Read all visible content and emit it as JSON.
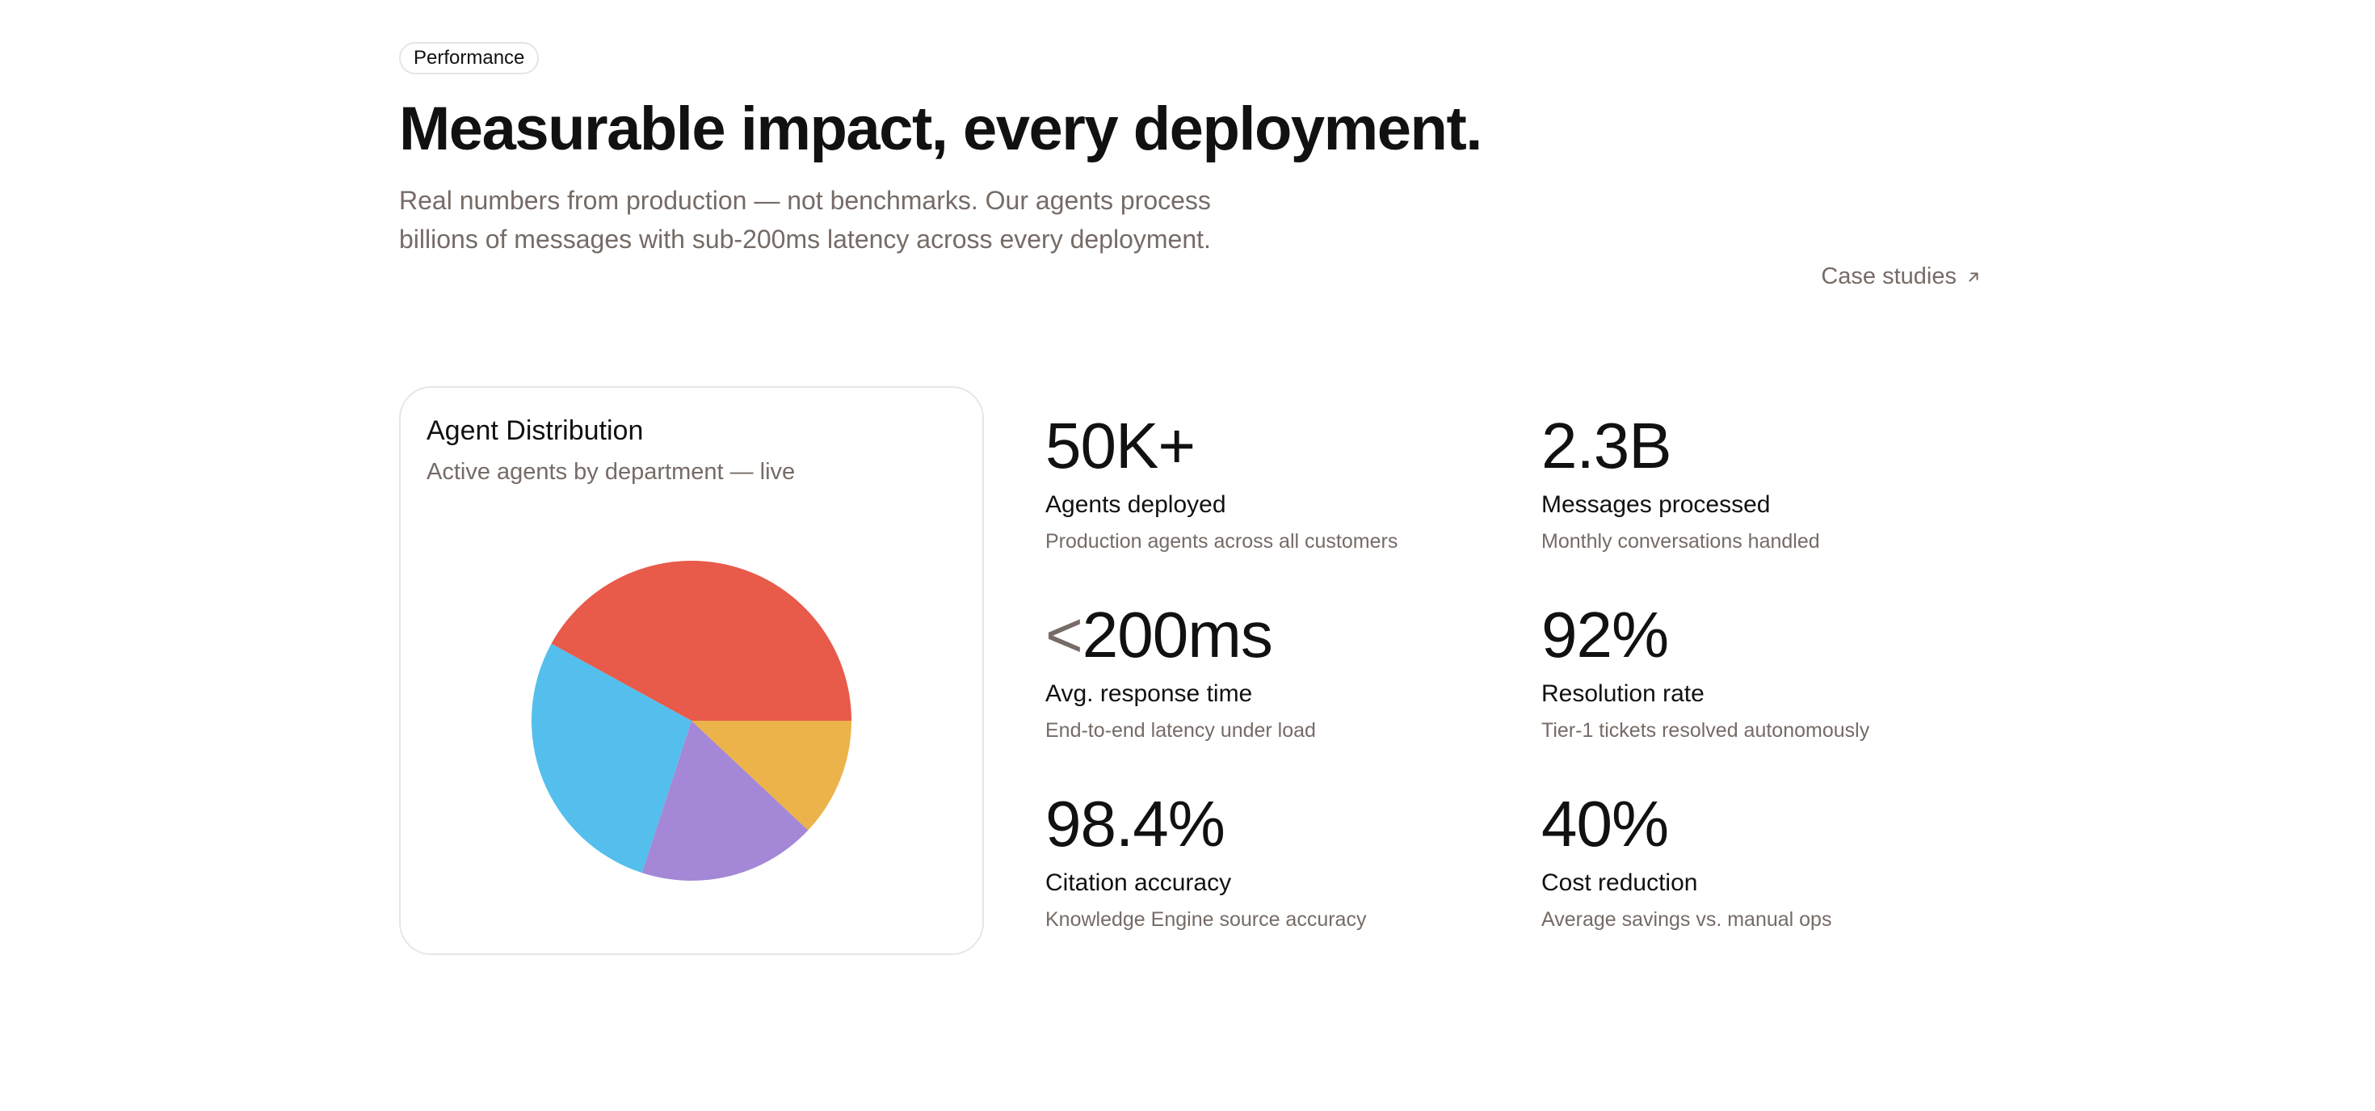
{
  "badge": "Performance",
  "headline": "Measurable impact, every deployment.",
  "subheadline": "Real numbers from production — not benchmarks. Our agents process billions of messages with sub-200ms latency across every deployment.",
  "case_studies_link": {
    "label": "Case studies",
    "icon": "arrow-up-right-icon"
  },
  "card": {
    "title": "Agent Distribution",
    "subtitle": "Active agents by department — live"
  },
  "chart_data": {
    "type": "pie",
    "values": [
      42,
      28,
      18,
      12
    ],
    "colors": [
      "#e85a4a",
      "#54bfec",
      "#a487d6",
      "#ecb34b"
    ],
    "start_angle_deg": 0,
    "direction": "counterclockwise",
    "legend": "none"
  },
  "stats": [
    {
      "prefix": "",
      "value": "50K+",
      "label": "Agents deployed",
      "desc": "Production agents across all customers"
    },
    {
      "prefix": "",
      "value": "2.3B",
      "label": "Messages processed",
      "desc": "Monthly conversations handled"
    },
    {
      "prefix": "<",
      "value": "200ms",
      "label": "Avg. response time",
      "desc": "End-to-end latency under load"
    },
    {
      "prefix": "",
      "value": "92%",
      "label": "Resolution rate",
      "desc": "Tier-1 tickets resolved autonomously"
    },
    {
      "prefix": "",
      "value": "98.4%",
      "label": "Citation accuracy",
      "desc": "Knowledge Engine source accuracy"
    },
    {
      "prefix": "",
      "value": "40%",
      "label": "Cost reduction",
      "desc": "Average savings vs. manual ops"
    }
  ]
}
